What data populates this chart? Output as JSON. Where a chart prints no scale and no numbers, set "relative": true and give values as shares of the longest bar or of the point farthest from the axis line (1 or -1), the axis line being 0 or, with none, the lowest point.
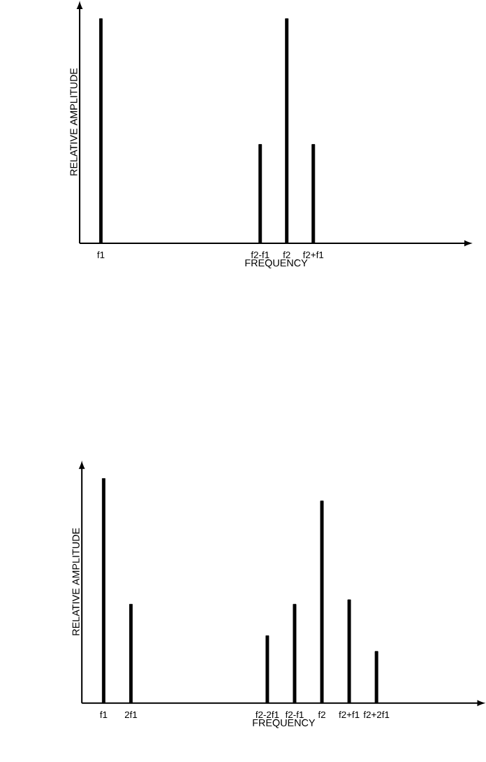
{
  "chart_data": [
    {
      "type": "bar",
      "relative": true,
      "xlabel": "FREQUENCY",
      "ylabel": "RELATIVE AMPLITUDE",
      "color": "#000000",
      "categories": [
        "f1",
        null,
        null,
        null,
        null,
        null,
        "f2-f1",
        "f2",
        "f2+f1",
        null,
        null,
        null,
        null,
        null
      ],
      "values": [
        1,
        null,
        null,
        null,
        null,
        null,
        0.44,
        1,
        0.44,
        null,
        null,
        null,
        null,
        null
      ]
    },
    {
      "type": "bar",
      "relative": true,
      "xlabel": "FREQUENCY",
      "ylabel": "RELATIVE AMPLITUDE",
      "color": "#000000",
      "categories": [
        "f1",
        "2f1",
        null,
        null,
        null,
        null,
        "f2-2f1",
        "f2-f1",
        "f2",
        "f2+f1",
        "f2+2f1",
        null,
        null,
        null
      ],
      "values": [
        1,
        0.44,
        null,
        null,
        null,
        null,
        0.3,
        0.44,
        0.9,
        0.46,
        0.23,
        null,
        null,
        null
      ]
    }
  ]
}
